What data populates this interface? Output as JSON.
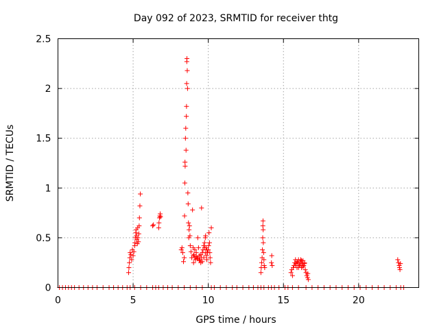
{
  "chart_data": {
    "type": "scatter",
    "title": "Day 092 of 2023, SRMTID for receiver thtg",
    "xlabel": "GPS time / hours",
    "ylabel": "SRMTID / TECUs",
    "xlim": [
      0,
      24
    ],
    "ylim": [
      0,
      2.5
    ],
    "xticks": [
      0,
      5,
      10,
      15,
      20
    ],
    "xtick_labels": [
      "0",
      "5",
      "10",
      "15",
      "20"
    ],
    "yticks": [
      0,
      0.5,
      1,
      1.5,
      2,
      2.5
    ],
    "ytick_labels": [
      "0",
      "0.5",
      "1",
      "1.5",
      "2",
      "2.5"
    ],
    "grid": true,
    "marker": "+",
    "color": "#ff0000",
    "series": [
      {
        "name": "SRMTID",
        "points": [
          [
            0.1,
            0
          ],
          [
            0.3,
            0
          ],
          [
            0.5,
            0
          ],
          [
            0.7,
            0
          ],
          [
            0.9,
            0
          ],
          [
            1.1,
            0
          ],
          [
            1.4,
            0
          ],
          [
            1.7,
            0
          ],
          [
            2.0,
            0
          ],
          [
            2.3,
            0
          ],
          [
            2.6,
            0
          ],
          [
            3.0,
            0
          ],
          [
            3.4,
            0
          ],
          [
            3.7,
            0
          ],
          [
            4.0,
            0
          ],
          [
            4.3,
            0
          ],
          [
            4.6,
            0
          ],
          [
            4.8,
            0
          ],
          [
            5.1,
            0
          ],
          [
            5.5,
            0
          ],
          [
            5.9,
            0
          ],
          [
            6.3,
            0
          ],
          [
            6.5,
            0
          ],
          [
            6.7,
            0
          ],
          [
            7.0,
            0
          ],
          [
            7.3,
            0
          ],
          [
            7.6,
            0
          ],
          [
            8.0,
            0
          ],
          [
            8.4,
            0
          ],
          [
            8.8,
            0
          ],
          [
            9.2,
            0
          ],
          [
            9.6,
            0
          ],
          [
            10.2,
            0
          ],
          [
            10.4,
            0
          ],
          [
            10.8,
            0
          ],
          [
            11.2,
            0
          ],
          [
            11.6,
            0
          ],
          [
            11.9,
            0
          ],
          [
            12.3,
            0
          ],
          [
            12.7,
            0
          ],
          [
            13.0,
            0
          ],
          [
            13.3,
            0
          ],
          [
            13.5,
            0
          ],
          [
            13.7,
            0
          ],
          [
            14.0,
            0
          ],
          [
            14.2,
            0
          ],
          [
            14.4,
            0
          ],
          [
            14.7,
            0
          ],
          [
            15.1,
            0
          ],
          [
            15.3,
            0
          ],
          [
            15.6,
            0
          ],
          [
            16.0,
            0
          ],
          [
            16.5,
            0
          ],
          [
            16.9,
            0
          ],
          [
            17.3,
            0
          ],
          [
            17.7,
            0
          ],
          [
            18.1,
            0
          ],
          [
            18.5,
            0
          ],
          [
            18.9,
            0
          ],
          [
            19.3,
            0
          ],
          [
            19.7,
            0
          ],
          [
            20.1,
            0
          ],
          [
            20.5,
            0
          ],
          [
            20.9,
            0
          ],
          [
            21.3,
            0
          ],
          [
            21.7,
            0
          ],
          [
            22.1,
            0
          ],
          [
            22.5,
            0
          ],
          [
            22.8,
            0
          ],
          [
            23.0,
            0
          ],
          [
            4.7,
            0.15
          ],
          [
            4.72,
            0.2
          ],
          [
            4.75,
            0.25
          ],
          [
            4.78,
            0.3
          ],
          [
            4.8,
            0.35
          ],
          [
            4.85,
            0.33
          ],
          [
            4.9,
            0.28
          ],
          [
            4.95,
            0.38
          ],
          [
            5.0,
            0.32
          ],
          [
            5.05,
            0.36
          ],
          [
            5.1,
            0.42
          ],
          [
            5.12,
            0.45
          ],
          [
            5.15,
            0.5
          ],
          [
            5.18,
            0.55
          ],
          [
            5.2,
            0.58
          ],
          [
            5.22,
            0.52
          ],
          [
            5.25,
            0.48
          ],
          [
            5.28,
            0.44
          ],
          [
            5.3,
            0.6
          ],
          [
            5.32,
            0.5
          ],
          [
            5.35,
            0.46
          ],
          [
            5.38,
            0.54
          ],
          [
            5.4,
            0.62
          ],
          [
            5.42,
            0.7
          ],
          [
            5.45,
            0.82
          ],
          [
            5.48,
            0.94
          ],
          [
            6.3,
            0.62
          ],
          [
            6.35,
            0.63
          ],
          [
            6.7,
            0.6
          ],
          [
            6.72,
            0.65
          ],
          [
            6.75,
            0.7
          ],
          [
            6.78,
            0.72
          ],
          [
            6.8,
            0.74
          ],
          [
            6.82,
            0.71
          ],
          [
            8.2,
            0.38
          ],
          [
            8.25,
            0.4
          ],
          [
            8.3,
            0.35
          ],
          [
            8.35,
            0.26
          ],
          [
            8.4,
            0.3
          ],
          [
            8.42,
            0.72
          ],
          [
            8.44,
            1.05
          ],
          [
            8.45,
            1.26
          ],
          [
            8.46,
            1.22
          ],
          [
            8.48,
            1.5
          ],
          [
            8.5,
            1.6
          ],
          [
            8.52,
            1.38
          ],
          [
            8.54,
            1.72
          ],
          [
            8.55,
            1.82
          ],
          [
            8.56,
            2.05
          ],
          [
            8.57,
            2.27
          ],
          [
            8.58,
            2.3
          ],
          [
            8.6,
            2.18
          ],
          [
            8.62,
            2.0
          ],
          [
            8.64,
            0.95
          ],
          [
            8.66,
            0.84
          ],
          [
            8.68,
            0.65
          ],
          [
            8.7,
            0.5
          ],
          [
            8.72,
            0.58
          ],
          [
            8.75,
            0.62
          ],
          [
            8.78,
            0.52
          ],
          [
            8.8,
            0.42
          ],
          [
            8.85,
            0.36
          ],
          [
            8.9,
            0.3
          ],
          [
            8.95,
            0.78
          ],
          [
            9.0,
            0.4
          ],
          [
            9.02,
            0.25
          ],
          [
            9.05,
            0.33
          ],
          [
            9.1,
            0.38
          ],
          [
            9.15,
            0.28
          ],
          [
            9.2,
            0.35
          ],
          [
            9.25,
            0.3
          ],
          [
            9.3,
            0.5
          ],
          [
            9.35,
            0.4
          ],
          [
            9.4,
            0.32
          ],
          [
            9.45,
            0.28
          ],
          [
            9.5,
            0.25
          ],
          [
            9.55,
            0.3
          ],
          [
            9.6,
            0.35
          ],
          [
            9.65,
            0.38
          ],
          [
            9.7,
            0.42
          ],
          [
            9.75,
            0.45
          ],
          [
            9.8,
            0.5
          ],
          [
            9.82,
            0.52
          ],
          [
            9.85,
            0.4
          ],
          [
            9.88,
            0.32
          ],
          [
            9.9,
            0.28
          ],
          [
            9.95,
            0.35
          ],
          [
            10.0,
            0.38
          ],
          [
            10.02,
            0.42
          ],
          [
            10.05,
            0.55
          ],
          [
            10.08,
            0.45
          ],
          [
            10.1,
            0.35
          ],
          [
            10.12,
            0.3
          ],
          [
            10.15,
            0.25
          ],
          [
            10.2,
            0.6
          ],
          [
            9.0,
            0.32
          ],
          [
            9.1,
            0.3
          ],
          [
            9.2,
            0.31
          ],
          [
            9.3,
            0.29
          ],
          [
            9.4,
            0.27
          ],
          [
            9.5,
            0.33
          ],
          [
            9.6,
            0.26
          ],
          [
            9.7,
            0.3
          ],
          [
            9.8,
            0.35
          ],
          [
            9.9,
            0.38
          ],
          [
            9.55,
            0.8
          ],
          [
            9.75,
            0.4
          ],
          [
            13.5,
            0.15
          ],
          [
            13.52,
            0.2
          ],
          [
            13.55,
            0.25
          ],
          [
            13.58,
            0.3
          ],
          [
            13.6,
            0.38
          ],
          [
            13.62,
            0.5
          ],
          [
            13.63,
            0.62
          ],
          [
            13.64,
            0.67
          ],
          [
            13.65,
            0.58
          ],
          [
            13.66,
            0.45
          ],
          [
            13.68,
            0.35
          ],
          [
            13.7,
            0.28
          ],
          [
            13.72,
            0.22
          ],
          [
            13.75,
            0.2
          ],
          [
            14.2,
            0.25
          ],
          [
            14.22,
            0.32
          ],
          [
            14.25,
            0.22
          ],
          [
            15.5,
            0.15
          ],
          [
            15.55,
            0.18
          ],
          [
            15.6,
            0.12
          ],
          [
            15.65,
            0.2
          ],
          [
            15.7,
            0.22
          ],
          [
            15.75,
            0.25
          ],
          [
            15.8,
            0.28
          ],
          [
            15.85,
            0.24
          ],
          [
            15.9,
            0.2
          ],
          [
            15.95,
            0.25
          ],
          [
            16.0,
            0.28
          ],
          [
            16.05,
            0.22
          ],
          [
            16.1,
            0.25
          ],
          [
            16.15,
            0.28
          ],
          [
            16.2,
            0.2
          ],
          [
            16.25,
            0.24
          ],
          [
            16.3,
            0.27
          ],
          [
            16.35,
            0.22
          ],
          [
            16.4,
            0.25
          ],
          [
            16.45,
            0.18
          ],
          [
            16.5,
            0.15
          ],
          [
            16.55,
            0.12
          ],
          [
            16.6,
            0.1
          ],
          [
            16.62,
            0.14
          ],
          [
            16.65,
            0.08
          ],
          [
            15.8,
            0.22
          ],
          [
            15.9,
            0.26
          ],
          [
            16.0,
            0.2
          ],
          [
            16.1,
            0.23
          ],
          [
            16.2,
            0.27
          ],
          [
            16.3,
            0.21
          ],
          [
            16.4,
            0.24
          ],
          [
            22.6,
            0.28
          ],
          [
            22.65,
            0.25
          ],
          [
            22.7,
            0.22
          ],
          [
            22.72,
            0.2
          ],
          [
            22.75,
            0.18
          ],
          [
            22.78,
            0.24
          ]
        ]
      }
    ]
  }
}
